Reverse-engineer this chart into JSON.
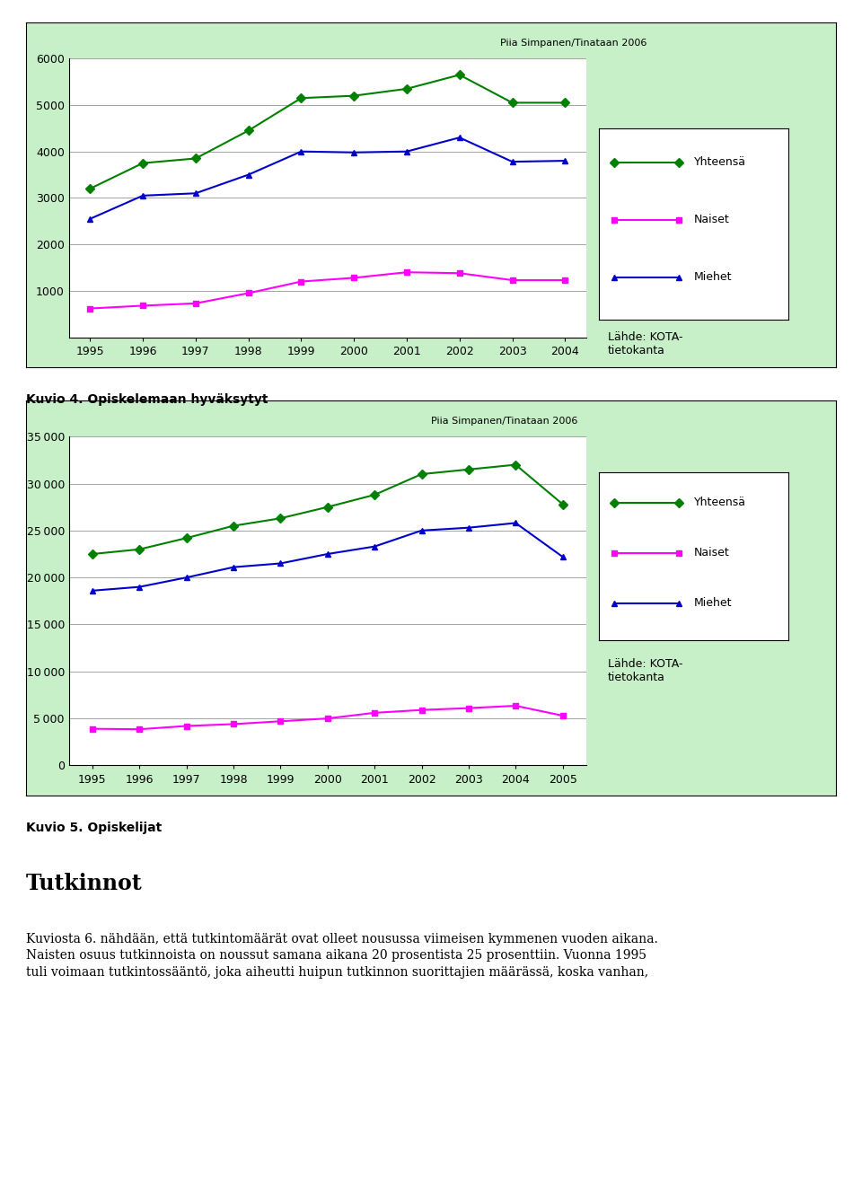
{
  "chart1": {
    "title": "Piia Simpanen/Tinataan 2006",
    "years": [
      1995,
      1996,
      1997,
      1998,
      1999,
      2000,
      2001,
      2002,
      2003,
      2004
    ],
    "yhteensa": [
      3200,
      3750,
      3850,
      4450,
      5150,
      5200,
      5350,
      5650,
      5050,
      5050
    ],
    "naiset": [
      620,
      680,
      730,
      950,
      1200,
      1280,
      1400,
      1380,
      1230,
      1230
    ],
    "miehet": [
      2550,
      3050,
      3100,
      3500,
      4000,
      3980,
      4000,
      4300,
      3780,
      3800
    ],
    "ylim": [
      0,
      6000
    ],
    "yticks": [
      0,
      1000,
      2000,
      3000,
      4000,
      5000,
      6000
    ],
    "caption": "Kuvio 4. Opiskelemaan hyväksytyt",
    "lahde": "Lähde: KOTA-\ntietokanta"
  },
  "chart2": {
    "title": "Piia Simpanen/Tinataan 2006",
    "years": [
      1995,
      1996,
      1997,
      1998,
      1999,
      2000,
      2001,
      2002,
      2003,
      2004,
      2005
    ],
    "yhteensa": [
      22500,
      23000,
      24200,
      25500,
      26300,
      27500,
      28800,
      31000,
      31500,
      32000,
      27800
    ],
    "naiset": [
      3900,
      3850,
      4200,
      4400,
      4700,
      5000,
      5600,
      5900,
      6100,
      6350,
      5300
    ],
    "miehet": [
      18600,
      19000,
      20000,
      21100,
      21500,
      22500,
      23300,
      25000,
      25300,
      25800,
      22200
    ],
    "ylim": [
      0,
      35000
    ],
    "yticks": [
      0,
      5000,
      10000,
      15000,
      20000,
      25000,
      30000,
      35000
    ],
    "caption": "Kuvio 5. Opiskelijat",
    "lahde": "Lähde: KOTA-\ntietokanta"
  },
  "colors": {
    "yhteensa": "#008000",
    "naiset": "#FF00FF",
    "miehet": "#0000CD"
  },
  "chart_bg_color": "#c8f0c8",
  "plot_bg": "#ffffff",
  "fig_bg": "#ffffff",
  "legend": [
    "Yhteensä",
    "Naiset",
    "Miehet"
  ],
  "title_text": "Tutkinnot",
  "body_text": "Kuviosta 6. nähdään, että tutkintomäärät ovat olleet nousussa viimeisen kymmenen vuoden aikana.\nNaisten osuus tutkinnoista on noussut samana aikana 20 prosentista 25 prosenttiin. Vuonna 1995\ntuli voimaan tutkintossääntö, joka aiheutti huipun tutkinnon suorittajien määrässä, koska vanhan,"
}
